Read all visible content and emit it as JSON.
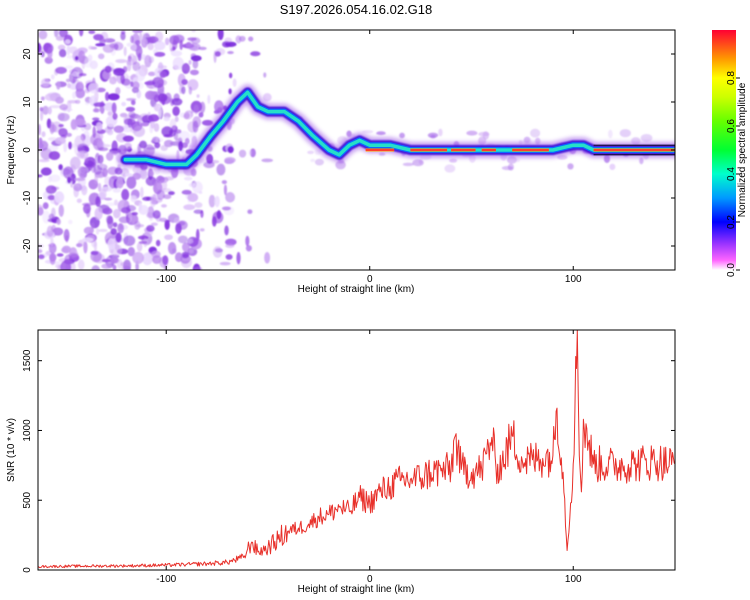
{
  "title": "S197.2026.054.16.02.G18",
  "chart_data": [
    {
      "type": "heatmap",
      "name": "spectrogram",
      "xlabel": "Height of straight line (km)",
      "ylabel": "Frequency (Hz)",
      "xlim": [
        -163,
        150
      ],
      "ylim": [
        -25,
        25
      ],
      "xticks": [
        -100,
        0,
        100
      ],
      "xtick_labels": [
        "-100",
        "0",
        "100"
      ],
      "yticks": [
        20,
        10,
        0,
        -10,
        -20
      ],
      "ytick_labels": [
        "20",
        "10",
        "0",
        "-10",
        "-20"
      ],
      "ridge": {
        "x": [
          -120,
          -110,
          -100,
          -90,
          -85,
          -78,
          -72,
          -65,
          -60,
          -55,
          -50,
          -42,
          -35,
          -28,
          -20,
          -15,
          -10,
          -5,
          0,
          10,
          20,
          30,
          40,
          50,
          60,
          70,
          80,
          90,
          100,
          105,
          110,
          120,
          130,
          140,
          150
        ],
        "freq": [
          -2,
          -2,
          -3,
          -3,
          -1,
          3,
          6,
          10,
          12,
          9,
          8,
          8,
          6,
          3,
          0,
          -1,
          1,
          2,
          1,
          1,
          0,
          0,
          0,
          0,
          0,
          0,
          0,
          0,
          1,
          1,
          0,
          0,
          0,
          0,
          0
        ]
      },
      "colorbar": {
        "label": "Normalized spectral amplitude",
        "ticks": [
          0.0,
          0.2,
          0.4,
          0.6,
          0.8
        ],
        "tick_labels": [
          "0.0",
          "0.2",
          "0.4",
          "0.6",
          "0.8"
        ],
        "range": [
          0,
          1
        ]
      }
    },
    {
      "type": "line",
      "name": "snr",
      "xlabel": "Height of straight line (km)",
      "ylabel": "SNR (10 * v/v)",
      "xlim": [
        -163,
        150
      ],
      "ylim": [
        0,
        1720
      ],
      "xticks": [
        -100,
        0,
        100
      ],
      "xtick_labels": [
        "-100",
        "0",
        "100"
      ],
      "yticks": [
        0,
        500,
        1000,
        1500
      ],
      "ytick_labels": [
        "0",
        "500",
        "1000",
        "1500"
      ],
      "color": "#e8302a",
      "series": [
        {
          "name": "SNR",
          "x": [
            -163,
            -140,
            -120,
            -100,
            -90,
            -80,
            -70,
            -62,
            -58,
            -55,
            -50,
            -45,
            -40,
            -35,
            -30,
            -25,
            -20,
            -15,
            -10,
            -5,
            0,
            5,
            10,
            15,
            20,
            25,
            30,
            35,
            40,
            42,
            45,
            50,
            55,
            60,
            62,
            65,
            70,
            75,
            80,
            85,
            90,
            92,
            95,
            97,
            100,
            102,
            103,
            104,
            105,
            110,
            120,
            130,
            140,
            150
          ],
          "y": [
            25,
            28,
            30,
            35,
            40,
            45,
            55,
            90,
            200,
            130,
            160,
            220,
            280,
            300,
            330,
            380,
            400,
            450,
            420,
            520,
            480,
            560,
            600,
            640,
            650,
            660,
            700,
            710,
            720,
            960,
            720,
            700,
            720,
            950,
            740,
            760,
            960,
            780,
            790,
            800,
            820,
            1160,
            700,
            140,
            760,
            1720,
            820,
            560,
            1080,
            760,
            750,
            760,
            780,
            760
          ]
        }
      ]
    }
  ]
}
